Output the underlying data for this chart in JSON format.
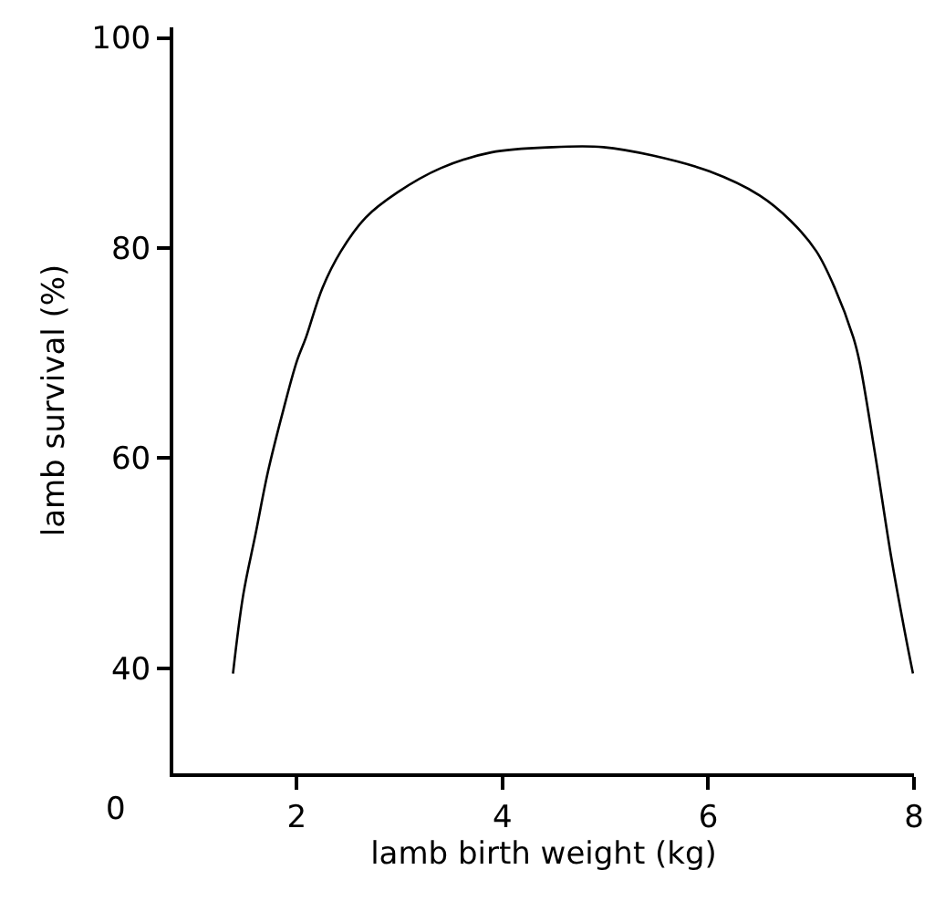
{
  "chart_data": {
    "type": "line",
    "xlabel": "lamb birth weight (kg)",
    "ylabel": "lamb survival (%)",
    "x": [
      1.38,
      1.48,
      1.6,
      1.72,
      1.87,
      2.0,
      2.09,
      2.25,
      2.43,
      2.67,
      2.98,
      3.4,
      3.89,
      4.49,
      4.98,
      5.46,
      6.01,
      6.5,
      6.8,
      7.05,
      7.23,
      7.41,
      7.47,
      7.62,
      7.78,
      7.91,
      7.99
    ],
    "series": [
      {
        "color": "#000000",
        "values": [
          39.5,
          47.0,
          52.8,
          58.7,
          64.6,
          69.2,
          71.5,
          76.2,
          79.7,
          82.9,
          85.3,
          87.6,
          89.1,
          89.6,
          89.6,
          88.8,
          87.3,
          85.0,
          82.6,
          79.7,
          76.2,
          71.5,
          69.2,
          60.5,
          50.5,
          43.5,
          39.5
        ]
      }
    ],
    "xlim": [
      0.8,
      8
    ],
    "xticks": [
      2,
      4,
      6,
      8
    ],
    "ylim": [
      30,
      101
    ],
    "yticks": [
      40,
      60,
      80,
      100
    ],
    "annotations": [
      "0"
    ],
    "legend": false,
    "marker": "none",
    "line_style": "solid"
  }
}
